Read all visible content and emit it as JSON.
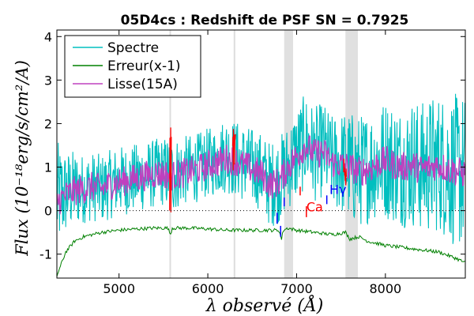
{
  "chart_data": {
    "type": "line",
    "title": "05D4cs : Redshift de PSF SN = 0.7925",
    "xlabel": "λ observé (Å)",
    "ylabel": "Flux (10⁻¹⁸erg/s/cm²/A)",
    "xlim": [
      4300,
      8900
    ],
    "ylim": [
      -1.55,
      4.15
    ],
    "xticks": [
      5000,
      6000,
      7000,
      8000
    ],
    "yticks": [
      -1,
      0,
      1,
      2,
      3,
      4
    ],
    "grid": false,
    "legend_position": "top-left",
    "zero_line": {
      "y": 0,
      "style": "dotted",
      "color": "#000000"
    },
    "shaded_bands": [
      {
        "x": [
          6860,
          6960
        ],
        "color": "#e0e0e0"
      },
      {
        "x": [
          7550,
          7690
        ],
        "color": "#e0e0e0"
      }
    ],
    "sky_lines": [
      {
        "x": 5577,
        "color": "#dddddd"
      },
      {
        "x": 6300,
        "color": "#dddddd"
      }
    ],
    "series": [
      {
        "name": "Spectre",
        "color": "#00bfbf",
        "x": [
          4300,
          4400,
          4500,
          4600,
          4700,
          4800,
          4900,
          5000,
          5100,
          5200,
          5300,
          5400,
          5500,
          5600,
          5700,
          5800,
          5900,
          6000,
          6100,
          6200,
          6300,
          6400,
          6500,
          6600,
          6700,
          6800,
          6900,
          7000,
          7100,
          7200,
          7300,
          7400,
          7500,
          7600,
          7700,
          7800,
          7900,
          8000,
          8100,
          8200,
          8300,
          8400,
          8500,
          8600,
          8700,
          8800,
          8900
        ],
        "y": [
          0.3,
          0.4,
          0.5,
          0.5,
          0.55,
          0.5,
          0.6,
          0.7,
          0.7,
          0.75,
          0.8,
          0.85,
          0.9,
          0.8,
          0.9,
          0.95,
          1.0,
          1.1,
          1.15,
          1.3,
          1.2,
          1.1,
          1.0,
          0.9,
          0.6,
          0.7,
          1.0,
          1.3,
          1.6,
          1.3,
          1.4,
          1.1,
          1.1,
          1.0,
          0.9,
          1.0,
          1.1,
          1.2,
          1.1,
          1.0,
          1.1,
          1.0,
          1.05,
          1.1,
          1.0,
          0.9,
          0.9
        ],
        "noise": [
          1.3,
          1.0,
          0.9,
          0.8,
          0.8,
          0.8,
          0.8,
          0.8,
          0.8,
          0.8,
          0.8,
          0.8,
          0.8,
          0.9,
          0.8,
          0.8,
          0.8,
          0.8,
          0.8,
          0.9,
          0.9,
          0.9,
          0.9,
          0.9,
          1.0,
          1.0,
          1.0,
          1.1,
          1.1,
          1.1,
          1.1,
          1.1,
          1.2,
          1.3,
          1.3,
          1.3,
          1.3,
          1.4,
          1.4,
          1.4,
          1.5,
          1.5,
          1.6,
          1.6,
          1.7,
          1.8,
          1.8
        ]
      },
      {
        "name": "Erreur(x-1)",
        "color": "#008000",
        "x": [
          4300,
          4400,
          4500,
          4600,
          4700,
          4800,
          5000,
          5200,
          5400,
          5550,
          5577,
          5600,
          5800,
          6000,
          6200,
          6400,
          6600,
          6800,
          6830,
          6850,
          6900,
          7000,
          7200,
          7400,
          7550,
          7600,
          7700,
          7800,
          7900,
          8000,
          8200,
          8400,
          8600,
          8800,
          8900
        ],
        "y": [
          -1.5,
          -0.95,
          -0.7,
          -0.6,
          -0.55,
          -0.5,
          -0.45,
          -0.42,
          -0.4,
          -0.4,
          -0.55,
          -0.4,
          -0.4,
          -0.42,
          -0.45,
          -0.45,
          -0.45,
          -0.45,
          -0.65,
          -0.45,
          -0.4,
          -0.45,
          -0.5,
          -0.55,
          -0.5,
          -0.65,
          -0.6,
          -0.7,
          -0.75,
          -0.8,
          -0.85,
          -0.9,
          -0.95,
          -1.1,
          -1.2
        ]
      },
      {
        "name": "Lisse(15A)",
        "color": "#bf40bf",
        "x": [
          4300,
          4400,
          4500,
          4600,
          4700,
          4800,
          4900,
          5000,
          5100,
          5200,
          5300,
          5400,
          5500,
          5600,
          5700,
          5800,
          5900,
          6000,
          6100,
          6200,
          6300,
          6400,
          6500,
          6600,
          6700,
          6800,
          6900,
          7000,
          7100,
          7200,
          7300,
          7400,
          7500,
          7600,
          7700,
          7800,
          7900,
          8000,
          8100,
          8200,
          8300,
          8400,
          8500,
          8600,
          8700,
          8800,
          8900
        ],
        "y": [
          0.2,
          0.35,
          0.45,
          0.5,
          0.55,
          0.5,
          0.6,
          0.65,
          0.7,
          0.75,
          0.8,
          0.85,
          0.85,
          0.8,
          0.85,
          0.9,
          0.95,
          1.05,
          1.1,
          1.2,
          1.15,
          1.05,
          0.95,
          0.85,
          0.6,
          0.65,
          1.0,
          1.25,
          1.5,
          1.3,
          1.35,
          1.1,
          1.05,
          1.0,
          0.9,
          0.95,
          1.05,
          1.15,
          1.05,
          1.0,
          1.05,
          0.95,
          1.0,
          1.05,
          0.95,
          0.9,
          0.85
        ],
        "noise": 0.35
      }
    ],
    "red_segments": [
      {
        "x": [
          5570,
          5590
        ],
        "y": [
          -0.2,
          2.0
        ]
      },
      {
        "x": [
          6280,
          6310
        ],
        "y": [
          0.9,
          1.9
        ]
      },
      {
        "x": [
          7530,
          7560
        ],
        "y": [
          0.5,
          1.2
        ]
      }
    ],
    "annotations": [
      {
        "text": "Ca",
        "x": 7110,
        "y": -0.02,
        "color": "#ff0000"
      },
      {
        "text": "Hγ",
        "x": 7370,
        "y": 0.38,
        "color": "#0000ff"
      }
    ],
    "markers": [
      {
        "x": 6780,
        "y": [
          -0.3,
          -0.05
        ],
        "color": "#0000ff"
      },
      {
        "x": 6860,
        "y": [
          0.1,
          0.3
        ],
        "color": "#0000ff"
      },
      {
        "x": 7040,
        "y": [
          0.35,
          0.55
        ],
        "color": "#ff0000"
      },
      {
        "x": 7110,
        "y": [
          -0.15,
          0.1
        ],
        "color": "#ff0000"
      },
      {
        "x": 7340,
        "y": [
          0.15,
          0.35
        ],
        "color": "#0000ff"
      },
      {
        "x": 6820,
        "y": [
          -0.6,
          -0.35
        ],
        "color": "#0000ff"
      }
    ]
  }
}
